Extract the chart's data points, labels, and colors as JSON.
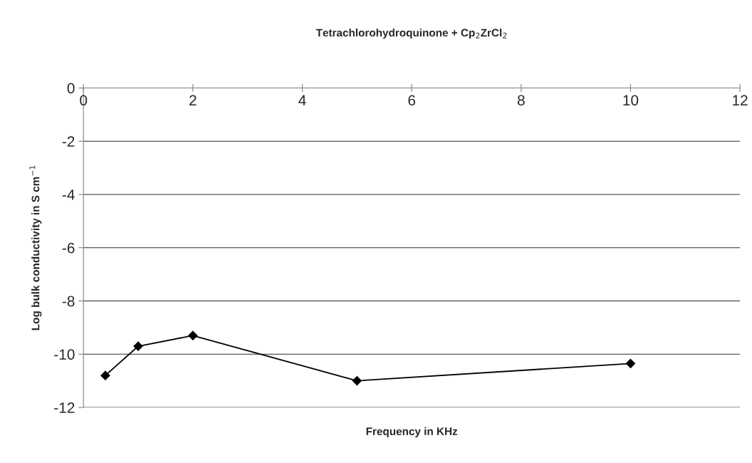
{
  "chart_data": {
    "type": "line",
    "title": "Tetrachlorohydroquinone + Cp$_{2}$ZrCl$_{2}$",
    "xlabel": "Frequency in KHz",
    "ylabel": "Log bulk conductivity in S cm$^{−1}$",
    "x": [
      0.4,
      1,
      2,
      5,
      10
    ],
    "series": [
      {
        "color": "#000000",
        "values": [
          -10.8,
          -9.7,
          -9.3,
          -11.0,
          -10.35
        ]
      }
    ],
    "xlim": [
      0,
      12
    ],
    "xticks": [
      0,
      2,
      4,
      6,
      8,
      10,
      12
    ],
    "ylim": [
      -12,
      0
    ],
    "yticks": [
      -12,
      -10,
      -8,
      -6,
      -4,
      -2,
      0
    ],
    "grid": "y",
    "marker": "diamond",
    "line_style": "solid",
    "legend": false
  }
}
